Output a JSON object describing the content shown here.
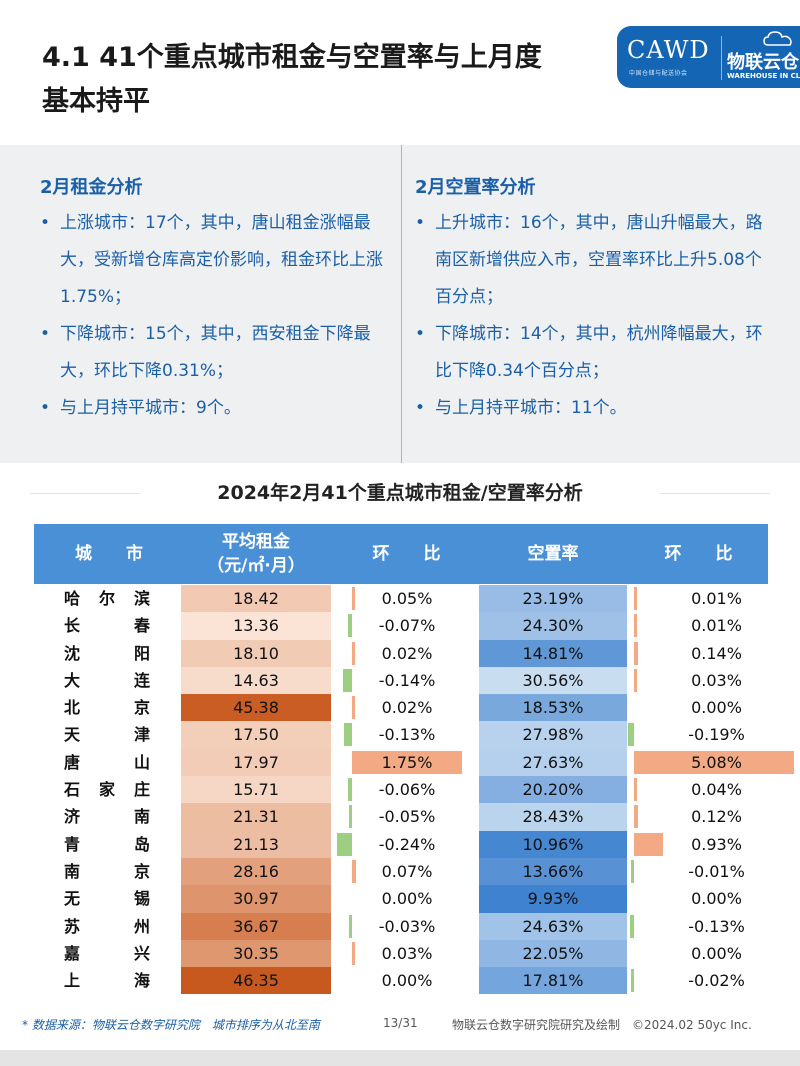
{
  "header": {
    "title_line1": "4.1 41个重点城市租金与空置率与上月度",
    "title_line2": "基本持平",
    "logo_main": "CAWD",
    "logo_sub": "中国仓储与配送协会",
    "logo_cn": "物联云仓",
    "logo_en": "WAREHOUSE IN CLOUD",
    "brand_color": "#1565b5"
  },
  "rent_analysis": {
    "title": "2月租金分析",
    "items": [
      "上涨城市：17个，其中，唐山租金涨幅最大，受新增仓库高定价影响，租金环比上涨1.75%；",
      "下降城市：15个，其中，西安租金下降最大，环比下降0.31%；",
      "与上月持平城市：9个。"
    ]
  },
  "vacancy_analysis": {
    "title": "2月空置率分析",
    "items": [
      "上升城市：16个，其中，唐山升幅最大，路南区新增供应入市，空置率环比上升5.08个百分点；",
      "下降城市：14个，其中，杭州降幅最大，环比下降0.34个百分点；",
      "与上月持平城市：11个。"
    ]
  },
  "table": {
    "title": "2024年2月41个重点城市租金/空置率分析",
    "headers": {
      "city": "城　　市",
      "rent": "平均租金\n（元/㎡·月）",
      "rent_change": "环　　比",
      "vacancy": "空置率",
      "vacancy_change": "环　　比"
    },
    "header_color": "#4a90d6",
    "rows": [
      {
        "city": "哈尔滨",
        "rent": "18.42",
        "rent_change": "0.05%",
        "vacancy": "23.19%",
        "vacancy_change": "0.01%"
      },
      {
        "city": "长春",
        "rent": "13.36",
        "rent_change": "-0.07%",
        "vacancy": "24.30%",
        "vacancy_change": "0.01%"
      },
      {
        "city": "沈阳",
        "rent": "18.10",
        "rent_change": "0.02%",
        "vacancy": "14.81%",
        "vacancy_change": "0.14%"
      },
      {
        "city": "大连",
        "rent": "14.63",
        "rent_change": "-0.14%",
        "vacancy": "30.56%",
        "vacancy_change": "0.03%"
      },
      {
        "city": "北京",
        "rent": "45.38",
        "rent_change": "0.02%",
        "vacancy": "18.53%",
        "vacancy_change": "0.00%"
      },
      {
        "city": "天津",
        "rent": "17.50",
        "rent_change": "-0.13%",
        "vacancy": "27.98%",
        "vacancy_change": "-0.19%"
      },
      {
        "city": "唐山",
        "rent": "17.97",
        "rent_change": "1.75%",
        "vacancy": "27.63%",
        "vacancy_change": "5.08%"
      },
      {
        "city": "石家庄",
        "rent": "15.71",
        "rent_change": "-0.06%",
        "vacancy": "20.20%",
        "vacancy_change": "0.04%"
      },
      {
        "city": "济南",
        "rent": "21.31",
        "rent_change": "-0.05%",
        "vacancy": "28.43%",
        "vacancy_change": "0.12%"
      },
      {
        "city": "青岛",
        "rent": "21.13",
        "rent_change": "-0.24%",
        "vacancy": "10.96%",
        "vacancy_change": "0.93%"
      },
      {
        "city": "南京",
        "rent": "28.16",
        "rent_change": "0.07%",
        "vacancy": "13.66%",
        "vacancy_change": "-0.01%"
      },
      {
        "city": "无锡",
        "rent": "30.97",
        "rent_change": "0.00%",
        "vacancy": "9.93%",
        "vacancy_change": "0.00%"
      },
      {
        "city": "苏州",
        "rent": "36.67",
        "rent_change": "-0.03%",
        "vacancy": "24.63%",
        "vacancy_change": "-0.13%"
      },
      {
        "city": "嘉兴",
        "rent": "30.35",
        "rent_change": "0.03%",
        "vacancy": "22.05%",
        "vacancy_change": "0.00%"
      },
      {
        "city": "上海",
        "rent": "46.35",
        "rent_change": "0.00%",
        "vacancy": "17.81%",
        "vacancy_change": "-0.02%"
      }
    ]
  },
  "footer": {
    "source": "* 数据来源：物联云仓数字研究院　城市排序为从北至南",
    "page": "13/31",
    "credit": "物联云仓数字研究院研究及绘制　©2024.02 50yc Inc."
  }
}
